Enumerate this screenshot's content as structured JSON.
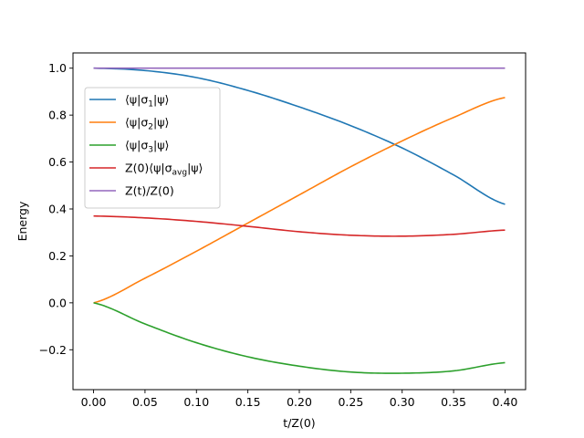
{
  "chart_data": {
    "type": "line",
    "title": "",
    "xlabel": "t/Z(0)",
    "ylabel": "Energy",
    "xlim": [
      -0.02,
      0.42
    ],
    "ylim": [
      -0.37,
      1.065
    ],
    "xticks": [
      0.0,
      0.05,
      0.1,
      0.15,
      0.2,
      0.25,
      0.3,
      0.35,
      0.4
    ],
    "xtick_labels": [
      "0.00",
      "0.05",
      "0.10",
      "0.15",
      "0.20",
      "0.25",
      "0.30",
      "0.35",
      "0.40"
    ],
    "yticks": [
      -0.2,
      0.0,
      0.2,
      0.4,
      0.6,
      0.8,
      1.0
    ],
    "ytick_labels": [
      "−0.2",
      "0.0",
      "0.2",
      "0.4",
      "0.6",
      "0.8",
      "1.0"
    ],
    "grid": false,
    "legend_position": "upper-left",
    "x": [
      0.0,
      0.05,
      0.1,
      0.15,
      0.2,
      0.25,
      0.3,
      0.35,
      0.4
    ],
    "series": [
      {
        "name": "⟨ψ|σ₁|ψ⟩",
        "legend": {
          "pre": "⟨ψ|σ",
          "sub": "1",
          "post": "|ψ⟩"
        },
        "color": "#1f77b4",
        "values": [
          1.0,
          0.99,
          0.96,
          0.905,
          0.835,
          0.755,
          0.66,
          0.545,
          0.42
        ]
      },
      {
        "name": "⟨ψ|σ₂|ψ⟩",
        "legend": {
          "pre": "⟨ψ|σ",
          "sub": "2",
          "post": "|ψ⟩"
        },
        "color": "#ff7f0e",
        "values": [
          0.0,
          0.105,
          0.22,
          0.34,
          0.46,
          0.58,
          0.69,
          0.79,
          0.875
        ]
      },
      {
        "name": "⟨ψ|σ₃|ψ⟩",
        "legend": {
          "pre": "⟨ψ|σ",
          "sub": "3",
          "post": "|ψ⟩"
        },
        "color": "#2ca02c",
        "values": [
          0.0,
          -0.09,
          -0.17,
          -0.23,
          -0.27,
          -0.295,
          -0.3,
          -0.29,
          -0.255
        ]
      },
      {
        "name": "Z(0)⟨ψ|σ_avg|ψ⟩",
        "legend": {
          "pre": "Z(0)⟨ψ|σ",
          "sub": "avg",
          "post": "|ψ⟩"
        },
        "color": "#d62728",
        "values": [
          0.37,
          0.362,
          0.347,
          0.326,
          0.303,
          0.288,
          0.284,
          0.292,
          0.31
        ]
      },
      {
        "name": "Z(t)/Z(0)",
        "legend": {
          "pre": "Z(t)/Z(0)",
          "sub": "",
          "post": ""
        },
        "color": "#9467bd",
        "values": [
          1.0,
          1.0,
          1.0,
          1.0,
          1.0,
          1.0,
          1.0,
          1.0,
          1.0
        ]
      }
    ]
  }
}
